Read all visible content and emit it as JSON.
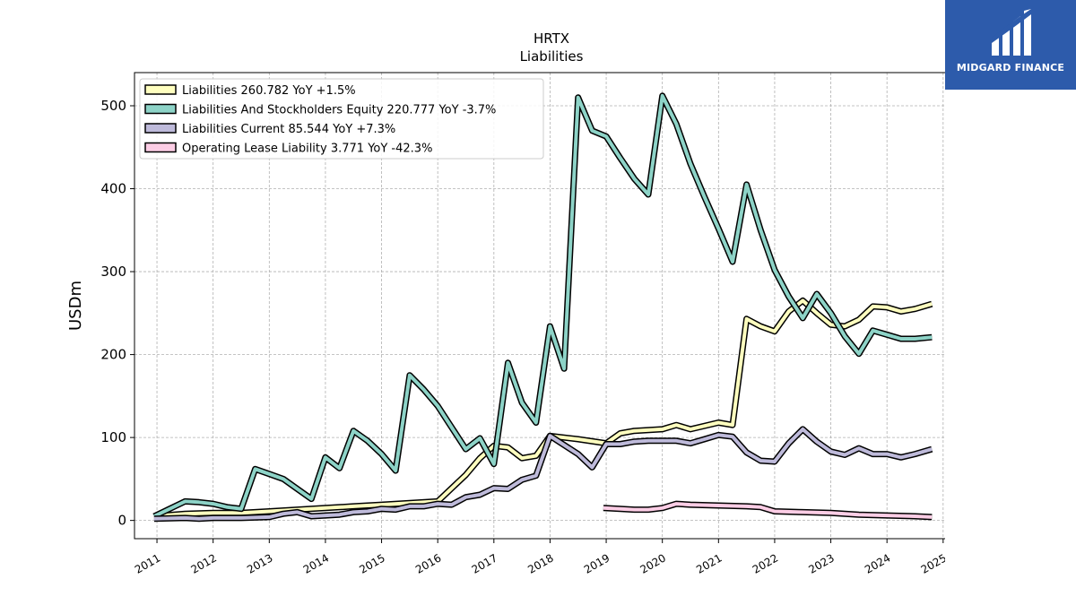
{
  "chart_data": {
    "type": "line",
    "title": "HRTX",
    "subtitle": "Liabilities",
    "ylabel": "USDm",
    "xlabel": "",
    "xlim": [
      2010.6,
      2025.45
    ],
    "ylim": [
      -22,
      540
    ],
    "x_ticks": [
      "2011",
      "2012",
      "2013",
      "2014",
      "2015",
      "2016",
      "2017",
      "2018",
      "2019",
      "2020",
      "2021",
      "2022",
      "2023",
      "2024",
      "2025"
    ],
    "y_ticks": [
      0,
      100,
      200,
      300,
      400,
      500
    ],
    "grid": true,
    "legend_position": "top-left",
    "series": [
      {
        "name": "Liabilities  260.782 YoY +1.5%",
        "color": "#ffffbf",
        "points": [
          [
            2010.95,
            5
          ],
          [
            2011.5,
            8
          ],
          [
            2012.0,
            9
          ],
          [
            2012.5,
            9
          ],
          [
            2013.0,
            11
          ],
          [
            2013.5,
            13
          ],
          [
            2014.0,
            15
          ],
          [
            2014.5,
            17
          ],
          [
            2015.0,
            19
          ],
          [
            2015.5,
            21
          ],
          [
            2016.0,
            23
          ],
          [
            2016.5,
            55
          ],
          [
            2016.75,
            75
          ],
          [
            2017.0,
            90
          ],
          [
            2017.25,
            88
          ],
          [
            2017.5,
            75
          ],
          [
            2017.75,
            78
          ],
          [
            2018.0,
            102
          ],
          [
            2018.5,
            98
          ],
          [
            2019.0,
            93
          ],
          [
            2019.25,
            105
          ],
          [
            2019.5,
            108
          ],
          [
            2020.0,
            110
          ],
          [
            2020.25,
            115
          ],
          [
            2020.5,
            110
          ],
          [
            2021.0,
            118
          ],
          [
            2021.25,
            115
          ],
          [
            2021.5,
            243
          ],
          [
            2021.75,
            234
          ],
          [
            2022.0,
            228
          ],
          [
            2022.25,
            252
          ],
          [
            2022.5,
            265
          ],
          [
            2022.75,
            250
          ],
          [
            2023.0,
            236
          ],
          [
            2023.25,
            234
          ],
          [
            2023.5,
            242
          ],
          [
            2023.75,
            258
          ],
          [
            2024.0,
            257
          ],
          [
            2024.25,
            252
          ],
          [
            2024.5,
            255
          ],
          [
            2024.8,
            261
          ]
        ]
      },
      {
        "name": "Liabilities And Stockholders Equity  220.777 YoY -3.7%",
        "color": "#8dd3c7",
        "points": [
          [
            2010.95,
            5
          ],
          [
            2011.5,
            23
          ],
          [
            2011.75,
            22
          ],
          [
            2012.0,
            20
          ],
          [
            2012.25,
            16
          ],
          [
            2012.5,
            14
          ],
          [
            2012.75,
            62
          ],
          [
            2013.0,
            56
          ],
          [
            2013.25,
            50
          ],
          [
            2013.5,
            38
          ],
          [
            2013.75,
            26
          ],
          [
            2014.0,
            76
          ],
          [
            2014.25,
            63
          ],
          [
            2014.5,
            108
          ],
          [
            2014.75,
            96
          ],
          [
            2015.0,
            80
          ],
          [
            2015.25,
            60
          ],
          [
            2015.5,
            175
          ],
          [
            2015.75,
            158
          ],
          [
            2016.0,
            138
          ],
          [
            2016.25,
            112
          ],
          [
            2016.5,
            86
          ],
          [
            2016.75,
            99
          ],
          [
            2017.0,
            68
          ],
          [
            2017.25,
            190
          ],
          [
            2017.5,
            142
          ],
          [
            2017.75,
            118
          ],
          [
            2018.0,
            234
          ],
          [
            2018.25,
            183
          ],
          [
            2018.5,
            510
          ],
          [
            2018.75,
            470
          ],
          [
            2019.0,
            463
          ],
          [
            2019.25,
            437
          ],
          [
            2019.5,
            412
          ],
          [
            2019.75,
            393
          ],
          [
            2020.0,
            512
          ],
          [
            2020.25,
            478
          ],
          [
            2020.5,
            430
          ],
          [
            2020.75,
            390
          ],
          [
            2021.0,
            352
          ],
          [
            2021.25,
            312
          ],
          [
            2021.5,
            405
          ],
          [
            2021.75,
            350
          ],
          [
            2022.0,
            302
          ],
          [
            2022.25,
            270
          ],
          [
            2022.5,
            244
          ],
          [
            2022.75,
            273
          ],
          [
            2023.0,
            250
          ],
          [
            2023.25,
            222
          ],
          [
            2023.5,
            201
          ],
          [
            2023.75,
            229
          ],
          [
            2024.0,
            224
          ],
          [
            2024.25,
            219
          ],
          [
            2024.5,
            219
          ],
          [
            2024.8,
            221
          ]
        ]
      },
      {
        "name": "Liabilities Current  85.544 YoY +7.3%",
        "color": "#bebada",
        "points": [
          [
            2010.95,
            2
          ],
          [
            2011.5,
            3
          ],
          [
            2011.75,
            2
          ],
          [
            2012.0,
            3
          ],
          [
            2012.5,
            3
          ],
          [
            2013.0,
            4
          ],
          [
            2013.25,
            8
          ],
          [
            2013.5,
            10
          ],
          [
            2013.75,
            5
          ],
          [
            2014.0,
            6
          ],
          [
            2014.25,
            7
          ],
          [
            2014.5,
            10
          ],
          [
            2014.75,
            11
          ],
          [
            2015.0,
            14
          ],
          [
            2015.25,
            13
          ],
          [
            2015.5,
            17
          ],
          [
            2015.75,
            17
          ],
          [
            2016.0,
            20
          ],
          [
            2016.25,
            19
          ],
          [
            2016.5,
            28
          ],
          [
            2016.75,
            31
          ],
          [
            2017.0,
            39
          ],
          [
            2017.25,
            38
          ],
          [
            2017.5,
            49
          ],
          [
            2017.75,
            54
          ],
          [
            2018.0,
            102
          ],
          [
            2018.5,
            80
          ],
          [
            2018.75,
            64
          ],
          [
            2019.0,
            92
          ],
          [
            2019.25,
            92
          ],
          [
            2019.5,
            95
          ],
          [
            2019.75,
            96
          ],
          [
            2020.0,
            96
          ],
          [
            2020.25,
            96
          ],
          [
            2020.5,
            93
          ],
          [
            2020.75,
            98
          ],
          [
            2021.0,
            103
          ],
          [
            2021.25,
            101
          ],
          [
            2021.5,
            82
          ],
          [
            2021.75,
            72
          ],
          [
            2022.0,
            71
          ],
          [
            2022.25,
            93
          ],
          [
            2022.5,
            110
          ],
          [
            2022.75,
            95
          ],
          [
            2023.0,
            83
          ],
          [
            2023.25,
            79
          ],
          [
            2023.5,
            87
          ],
          [
            2023.75,
            80
          ],
          [
            2024.0,
            80
          ],
          [
            2024.25,
            76
          ],
          [
            2024.5,
            80
          ],
          [
            2024.8,
            86
          ]
        ]
      },
      {
        "name": "Operating Lease Liability  3.771 YoY -42.3%",
        "color": "#fccde5",
        "points": [
          [
            2018.95,
            15
          ],
          [
            2019.25,
            14
          ],
          [
            2019.5,
            13
          ],
          [
            2019.75,
            13
          ],
          [
            2020.0,
            15
          ],
          [
            2020.25,
            20
          ],
          [
            2020.5,
            19
          ],
          [
            2021.0,
            18
          ],
          [
            2021.5,
            17
          ],
          [
            2021.75,
            16
          ],
          [
            2022.0,
            11
          ],
          [
            2022.5,
            10
          ],
          [
            2023.0,
            9
          ],
          [
            2023.5,
            7
          ],
          [
            2024.0,
            6
          ],
          [
            2024.5,
            5
          ],
          [
            2024.8,
            4
          ]
        ]
      }
    ]
  },
  "logo": {
    "text": "MIDGARD FINANCE",
    "icon": "midgard-logo-icon"
  }
}
